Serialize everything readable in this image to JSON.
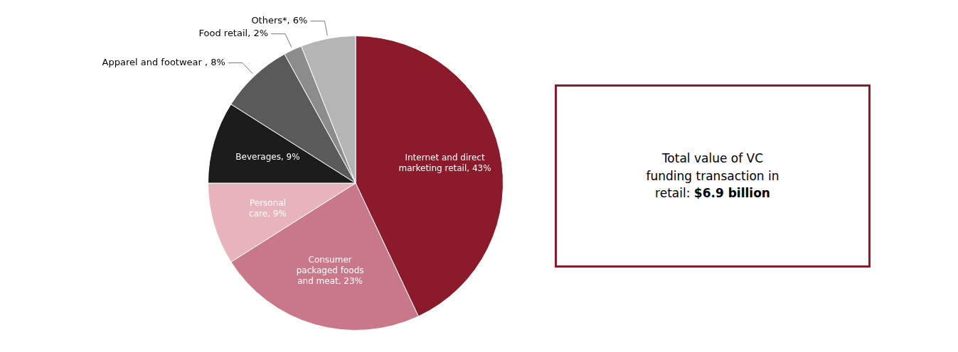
{
  "chart_data": {
    "type": "pie",
    "categories": [
      "Internet and direct\nmarketing retail, 43%",
      "Consumer\npackaged foods\nand meat, 23%",
      "Personal\ncare, 9%",
      "Beverages, 9%",
      "Apparel and footwear , 8%",
      "Food retail, 2%",
      "Others*, 6%"
    ],
    "values": [
      43,
      23,
      9,
      9,
      8,
      2,
      6
    ],
    "colors": [
      "#8B1A2A",
      "#C9788A",
      "#E8B4BC",
      "#1C1C1C",
      "#5A5A5A",
      "#8C8C8C",
      "#B5B5B5"
    ],
    "annotations": [
      {
        "text": "Total value of VC\nfunding transaction in\nretail: ",
        "bold": "$6.9 billion",
        "color": "#8B1A2A"
      }
    ]
  }
}
